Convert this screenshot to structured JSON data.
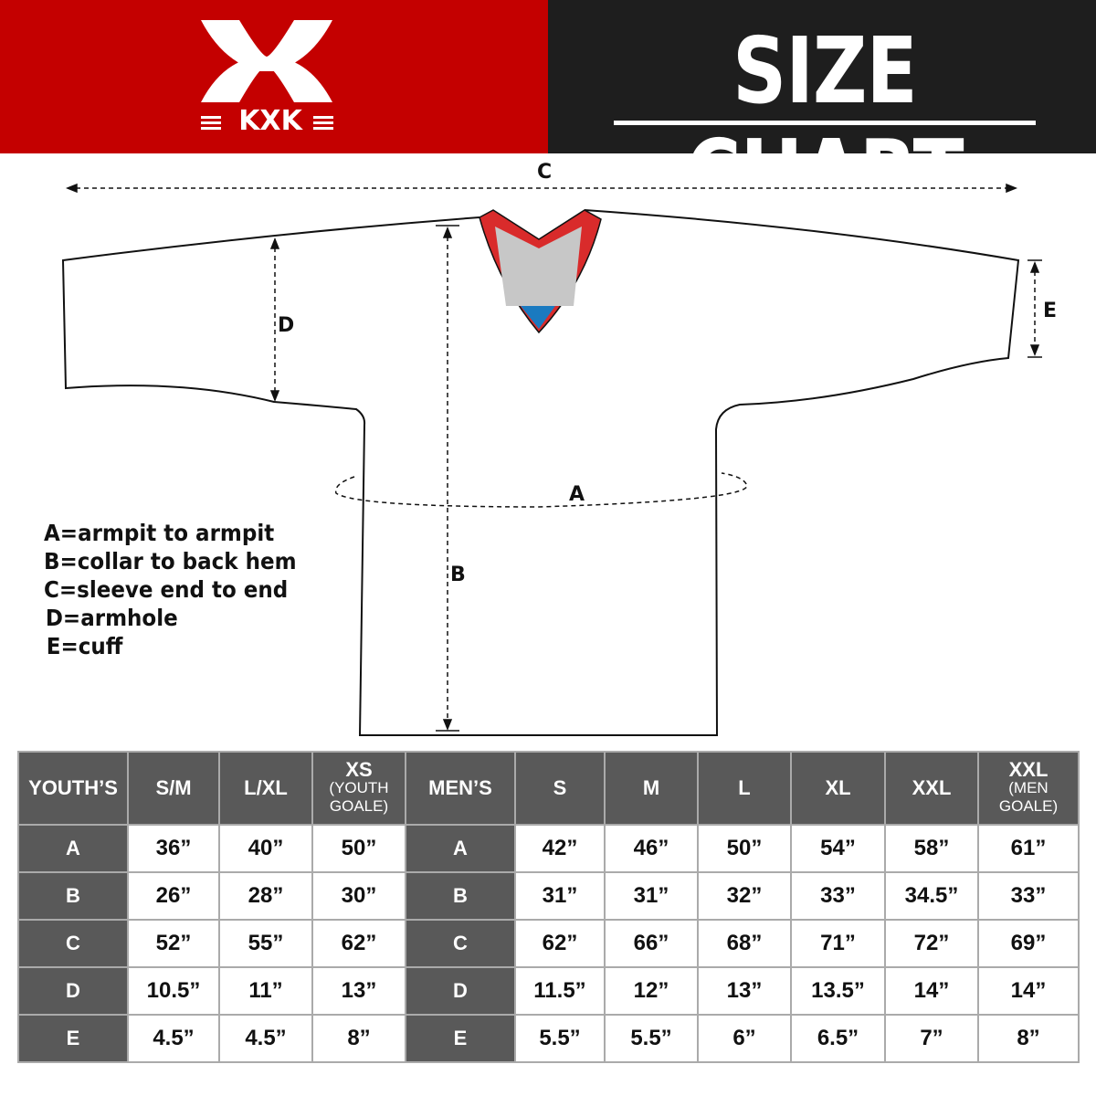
{
  "header": {
    "brand": "KXK",
    "title": "SIZE CHART",
    "brand_color": "#c40000",
    "title_bg": "#1e1e1e"
  },
  "diagram": {
    "labels": {
      "a": "A",
      "b": "B",
      "c": "C",
      "d": "D",
      "e": "E"
    },
    "legend": [
      "A=armpit to armpit",
      "B=collar to back hem",
      "C=sleeve end to end",
      "D=armhole",
      "E=cuff"
    ]
  },
  "table": {
    "youth": {
      "header": "YOUTH’S",
      "sizes": [
        {
          "main": "S/M",
          "sub": ""
        },
        {
          "main": "L/XL",
          "sub": ""
        },
        {
          "main": "XS",
          "sub": "(YOUTH GOALE)"
        }
      ],
      "rows": [
        {
          "label": "A",
          "values": [
            "36”",
            "40”",
            "50”"
          ]
        },
        {
          "label": "B",
          "values": [
            "26”",
            "28”",
            "30”"
          ]
        },
        {
          "label": "C",
          "values": [
            "52”",
            "55”",
            "62”"
          ]
        },
        {
          "label": "D",
          "values": [
            "10.5”",
            "11”",
            "13”"
          ]
        },
        {
          "label": "E",
          "values": [
            "4.5”",
            "4.5”",
            "8”"
          ]
        }
      ]
    },
    "men": {
      "header": "MEN’S",
      "sizes": [
        {
          "main": "S",
          "sub": ""
        },
        {
          "main": "M",
          "sub": ""
        },
        {
          "main": "L",
          "sub": ""
        },
        {
          "main": "XL",
          "sub": ""
        },
        {
          "main": "XXL",
          "sub": ""
        },
        {
          "main": "XXL",
          "sub": "(MEN GOALE)"
        }
      ],
      "rows": [
        {
          "label": "A",
          "values": [
            "42”",
            "46”",
            "50”",
            "54”",
            "58”",
            "61”"
          ]
        },
        {
          "label": "B",
          "values": [
            "31”",
            "31”",
            "32”",
            "33”",
            "34.5”",
            "33”"
          ]
        },
        {
          "label": "C",
          "values": [
            "62”",
            "66”",
            "68”",
            "71”",
            "72”",
            "69”"
          ]
        },
        {
          "label": "D",
          "values": [
            "11.5”",
            "12”",
            "13”",
            "13.5”",
            "14”",
            "14”"
          ]
        },
        {
          "label": "E",
          "values": [
            "5.5”",
            "5.5”",
            "6”",
            "6.5”",
            "7”",
            "8”"
          ]
        }
      ]
    }
  }
}
